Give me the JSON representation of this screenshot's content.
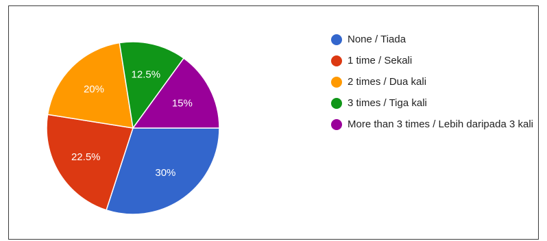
{
  "chart_data": {
    "type": "pie",
    "categories": [
      "None / Tiada",
      "1 time / Sekali",
      "2 times / Dua kali",
      "3 times / Tiga kali",
      "More than 3 times / Lebih daripada 3 kali"
    ],
    "values": [
      30,
      22.5,
      20,
      12.5,
      15
    ],
    "labels": [
      "30%",
      "22.5%",
      "20%",
      "12.5%",
      "15%"
    ],
    "colors": [
      "#3366cc",
      "#dc3912",
      "#ff9900",
      "#109618",
      "#990099"
    ],
    "legend_position": "right"
  }
}
